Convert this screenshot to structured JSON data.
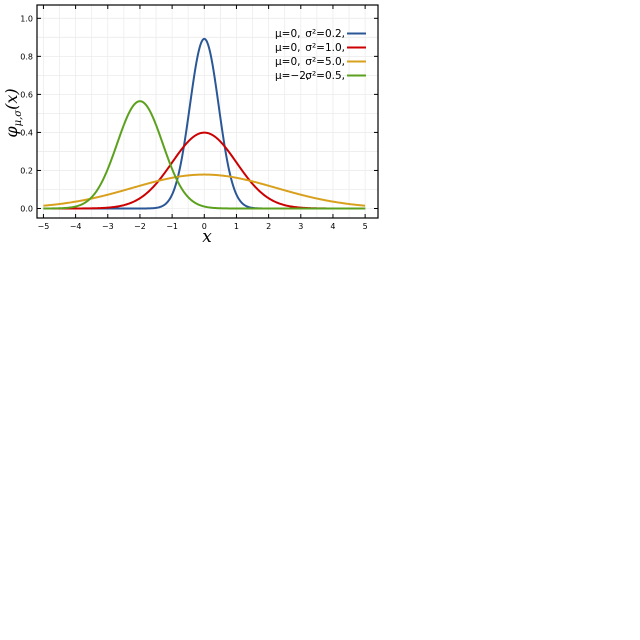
{
  "chart_data": {
    "type": "line",
    "title": "",
    "xlabel": "x",
    "ylabel": "φμ,σ(x)",
    "ylabel_base": "φ",
    "ylabel_sub": "μ,σ",
    "ylabel_arg": "(x)",
    "xlim": [
      -5.2,
      5.4
    ],
    "ylim": [
      -0.05,
      1.07
    ],
    "xticks": [
      -5,
      -4,
      -3,
      -2,
      -1,
      0,
      1,
      2,
      3,
      4,
      5
    ],
    "xtick_labels": [
      "−5",
      "−4",
      "−3",
      "−2",
      "−1",
      "0",
      "1",
      "2",
      "3",
      "4",
      "5"
    ],
    "yticks": [
      0.0,
      0.2,
      0.4,
      0.6,
      0.8,
      1.0
    ],
    "ytick_labels": [
      "0.0",
      "0.2",
      "0.4",
      "0.6",
      "0.8",
      "1.0"
    ],
    "grid": true,
    "legend_position": "top-right",
    "series": [
      {
        "mu": 0,
        "variance": 0.2,
        "color": "#2b5797",
        "label_mu": "μ=0,",
        "label_sigma": "σ²=0.2,"
      },
      {
        "mu": 0,
        "variance": 1.0,
        "color": "#cc0000",
        "label_mu": "μ=0,",
        "label_sigma": "σ²=1.0,"
      },
      {
        "mu": 0,
        "variance": 5.0,
        "color": "#d9a01e",
        "label_mu": "μ=0,",
        "label_sigma": "σ²=5.0,"
      },
      {
        "mu": -2,
        "variance": 0.5,
        "color": "#5ba11e",
        "label_mu": "μ=−2,",
        "label_sigma": "σ²=0.5,"
      }
    ]
  }
}
